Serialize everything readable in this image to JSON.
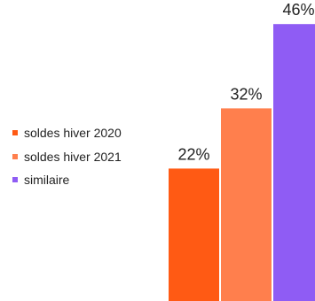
{
  "chart_data": {
    "type": "bar",
    "categories": [
      "soldes hiver 2020",
      "soldes hiver 2021",
      "similaire"
    ],
    "values": [
      22,
      32,
      46
    ],
    "value_labels": [
      "22%",
      "32%",
      "46%"
    ],
    "colors": [
      "#ff5a14",
      "#ff7f4d",
      "#8f5cf4"
    ],
    "legend": {
      "position": "left",
      "entries": [
        "soldes hiver 2020",
        "soldes hiver 2021",
        "similaire"
      ]
    },
    "ylim": [
      0,
      50
    ],
    "grid": false
  }
}
